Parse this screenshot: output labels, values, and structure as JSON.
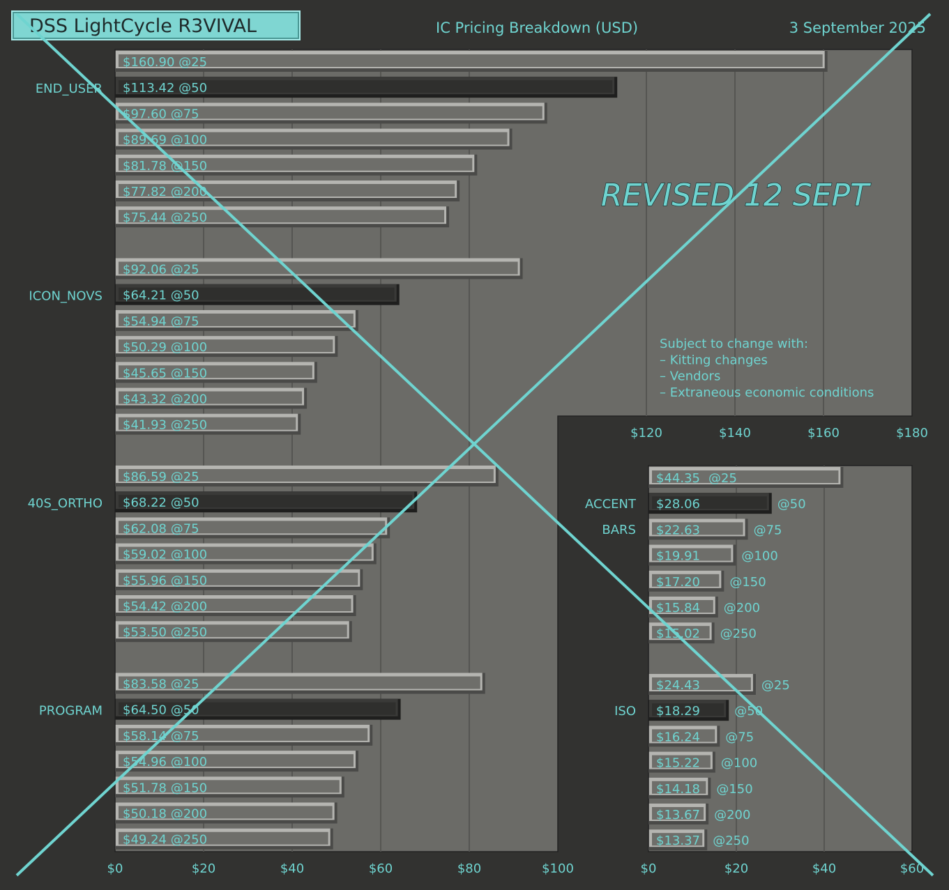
{
  "header": {
    "app_tag": "DSS LightCycle R3VIVAL",
    "title": "IC Pricing Breakdown (USD)",
    "date": "3 September 2025"
  },
  "overlay": {
    "stamp": "REVISED 12 SEPT",
    "x_mark": true
  },
  "note": {
    "lines": [
      "Subject to change with:",
      "– Kitting changes",
      "– Vendors",
      "– Extraneous economic conditions"
    ]
  },
  "colors": {
    "background": "#323230",
    "plot": "#6b6b67",
    "bar_light": "#6e6e6a",
    "bar_dark": "#2f2f2d",
    "accent": "#6fd4d0"
  },
  "chart_data": [
    {
      "type": "bar",
      "orientation": "horizontal",
      "title": "IC Pricing Breakdown (USD)",
      "xlim": [
        0,
        180
      ],
      "x_ticks": [
        "$0",
        "$20",
        "$40",
        "$60",
        "$80",
        "$100",
        "$120",
        "$140",
        "$160",
        "$180"
      ],
      "grid": true,
      "groups": [
        {
          "name": "END_USER",
          "values": [
            160.9,
            113.42,
            97.6,
            89.69,
            81.78,
            77.82,
            75.44
          ],
          "labels": [
            "$160.90 @25",
            "$113.42 @50",
            "$97.60 @75",
            "$89.69 @100",
            "$81.78 @150",
            "$77.82 @200",
            "$75.44 @250"
          ]
        },
        {
          "name": "ICON_NOVS",
          "values": [
            92.06,
            64.21,
            54.94,
            50.29,
            45.65,
            43.32,
            41.93
          ],
          "labels": [
            "$92.06 @25",
            "$64.21 @50",
            "$54.94 @75",
            "$50.29 @100",
            "$45.65 @150",
            "$43.32 @200",
            "$41.93 @250"
          ]
        },
        {
          "name": "40S_ORTHO",
          "values": [
            86.59,
            68.22,
            62.08,
            59.02,
            55.96,
            54.42,
            53.5
          ],
          "labels": [
            "$86.59 @25",
            "$68.22 @50",
            "$62.08 @75",
            "$59.02 @100",
            "$55.96 @150",
            "$54.42 @200",
            "$53.50 @250"
          ]
        },
        {
          "name": "PROGRAM",
          "values": [
            83.58,
            64.5,
            58.14,
            54.96,
            51.78,
            50.18,
            49.24
          ],
          "labels": [
            "$83.58 @25",
            "$64.50 @50",
            "$58.14 @75",
            "$54.96 @100",
            "$51.78 @150",
            "$50.18 @200",
            "$49.24 @250"
          ]
        }
      ],
      "quantities": [
        "@25",
        "@50",
        "@75",
        "@100",
        "@150",
        "@200",
        "@250"
      ]
    },
    {
      "type": "bar",
      "orientation": "horizontal",
      "xlim": [
        0,
        60
      ],
      "x_ticks": [
        "$0",
        "$20",
        "$40",
        "$60"
      ],
      "grid": true,
      "groups": [
        {
          "name_lines": [
            "ACCENT",
            "BARS"
          ],
          "values": [
            44.35,
            28.06,
            22.63,
            19.91,
            17.2,
            15.84,
            15.02
          ],
          "prices": [
            "$44.35",
            "$28.06",
            "$22.63",
            "$19.91",
            "$17.20",
            "$15.84",
            "$15.02"
          ],
          "quantities": [
            "@25",
            "@50",
            "@75",
            "@100",
            "@150",
            "@200",
            "@250"
          ]
        },
        {
          "name_lines": [
            "ISO"
          ],
          "values": [
            24.43,
            18.29,
            16.24,
            15.22,
            14.18,
            13.67,
            13.37
          ],
          "prices": [
            "$24.43",
            "$18.29",
            "$16.24",
            "$15.22",
            "$14.18",
            "$13.67",
            "$13.37"
          ],
          "quantities": [
            "@25",
            "@50",
            "@75",
            "@100",
            "@150",
            "@200",
            "@250"
          ]
        }
      ]
    }
  ]
}
